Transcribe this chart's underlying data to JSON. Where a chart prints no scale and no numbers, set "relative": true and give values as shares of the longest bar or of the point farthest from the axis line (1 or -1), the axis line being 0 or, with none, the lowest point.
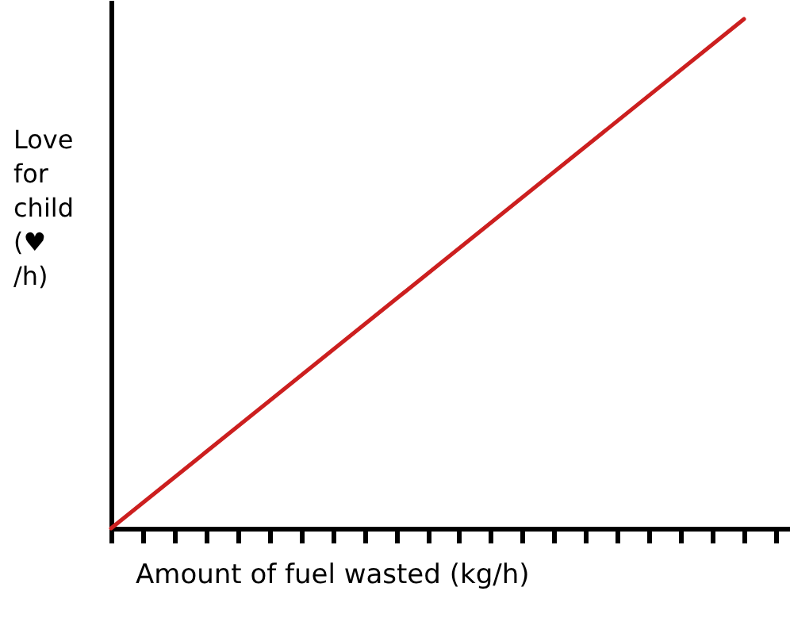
{
  "chart_data": {
    "type": "line",
    "xlabel": "Amount of fuel wasted (kg/h)",
    "ylabel": "Love for child (♥ /h)",
    "categories": [
      null,
      null
    ],
    "series": [
      {
        "color": "#cc1f1f",
        "values": [
          0,
          1
        ]
      }
    ],
    "relative": true,
    "grid": false
  }
}
